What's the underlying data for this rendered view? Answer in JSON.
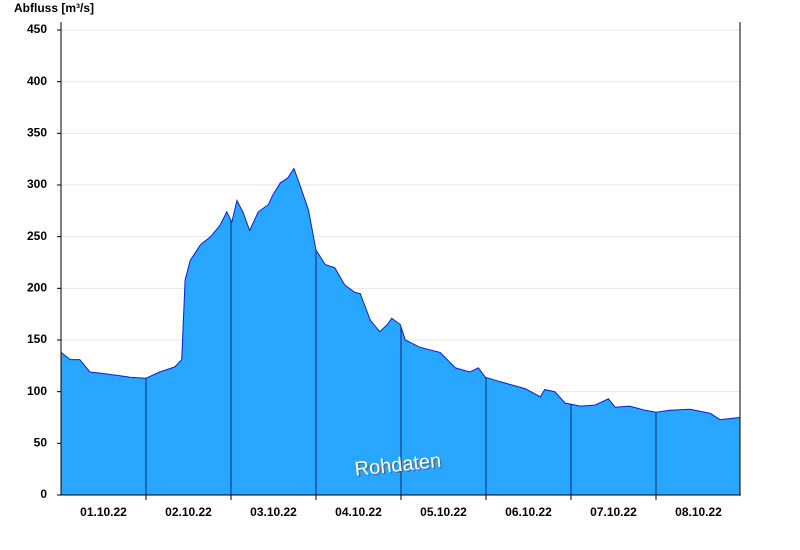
{
  "chart_data": {
    "type": "area",
    "y_label": "Abfluss [m³/s]",
    "annotation": "Rohdaten",
    "x": [
      0,
      0.11,
      0.22,
      0.34,
      0.46,
      0.64,
      0.81,
      1.0,
      1.16,
      1.34,
      1.42,
      1.46,
      1.52,
      1.64,
      1.76,
      1.87,
      1.95,
      2.01,
      2.07,
      2.14,
      2.22,
      2.32,
      2.44,
      2.49,
      2.58,
      2.67,
      2.74,
      2.81,
      2.91,
      3.0,
      3.11,
      3.22,
      3.34,
      3.46,
      3.52,
      3.64,
      3.75,
      3.84,
      3.89,
      3.99,
      4.05,
      4.22,
      4.46,
      4.64,
      4.81,
      4.91,
      4.99,
      5.11,
      5.28,
      5.46,
      5.64,
      5.69,
      5.81,
      5.93,
      6.11,
      6.28,
      6.44,
      6.52,
      6.69,
      6.87,
      7.0,
      7.16,
      7.4,
      7.64,
      7.75,
      7.99
    ],
    "values": [
      138,
      131,
      131,
      119,
      118,
      116,
      114,
      113,
      119,
      124,
      131,
      208,
      227,
      242,
      250,
      261,
      274,
      264,
      285,
      274,
      256,
      274,
      281,
      290,
      302,
      307,
      316,
      300,
      276,
      237,
      223,
      220,
      203,
      196,
      195,
      169,
      158,
      165,
      171,
      165,
      150,
      143,
      138,
      123,
      119,
      123,
      114,
      111,
      107,
      103,
      95,
      102,
      100,
      89,
      86,
      87,
      93,
      85,
      86,
      82,
      80,
      82,
      83,
      79,
      73,
      75
    ],
    "color": "#29a6ff",
    "line_color": "#0a1fd6",
    "xlim": [
      0,
      8
    ],
    "xticks": [
      {
        "value": 0.5,
        "label": "01.10.22"
      },
      {
        "value": 1.5,
        "label": "02.10.22"
      },
      {
        "value": 2.5,
        "label": "03.10.22"
      },
      {
        "value": 3.5,
        "label": "04.10.22"
      },
      {
        "value": 4.5,
        "label": "05.10.22"
      },
      {
        "value": 5.5,
        "label": "06.10.22"
      },
      {
        "value": 6.5,
        "label": "07.10.22"
      },
      {
        "value": 7.5,
        "label": "08.10.22"
      }
    ],
    "ylim": [
      0,
      450
    ],
    "yticks": [
      0,
      50,
      100,
      150,
      200,
      250,
      300,
      350,
      400,
      450
    ],
    "grid": true
  }
}
